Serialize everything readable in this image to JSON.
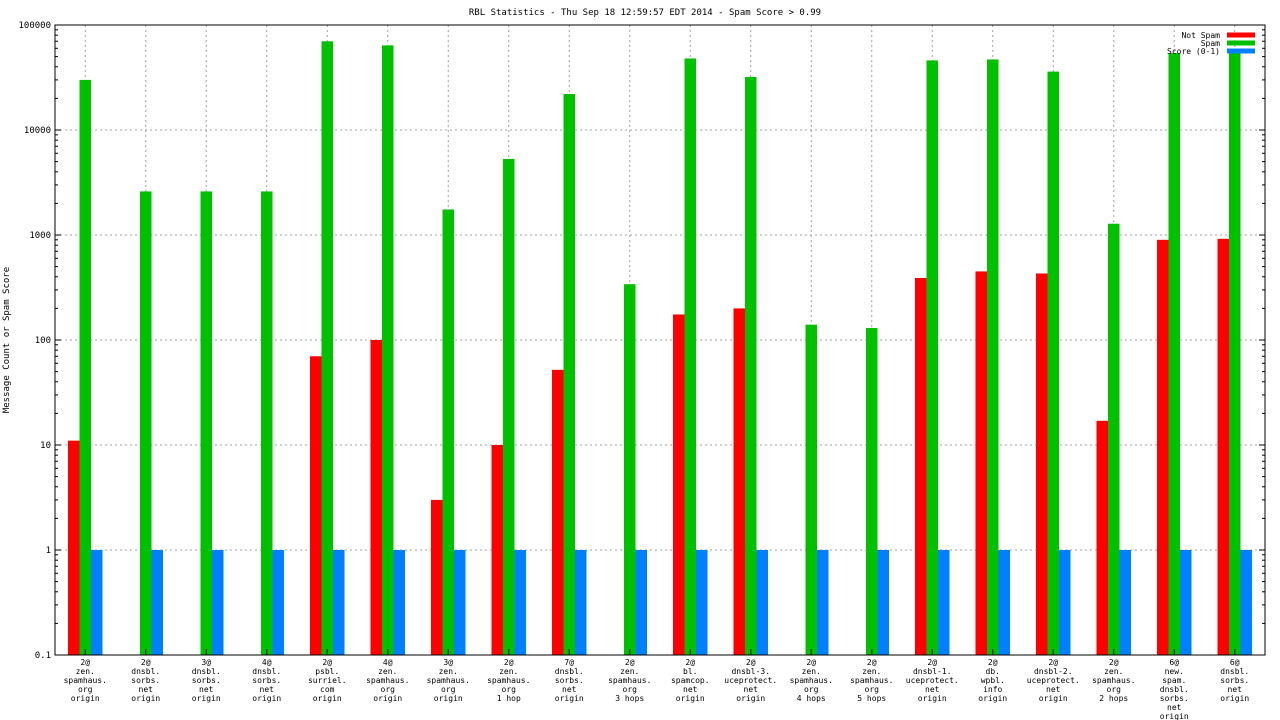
{
  "chart_data": {
    "type": "bar",
    "title": "RBL Statistics - Thu Sep 18 12:59:57 EDT 2014 - Spam Score > 0.99",
    "xlabel": "",
    "ylabel": "Message Count or Spam Score",
    "yscale": "log",
    "ylim": [
      0.1,
      100000
    ],
    "yticks": [
      "0.1",
      "1",
      "10",
      "100",
      "1000",
      "10000",
      "100000"
    ],
    "grid": true,
    "legend_position": "top-right",
    "categories": [
      [
        "2@",
        "zen.",
        "spamhaus.",
        "org",
        "origin"
      ],
      [
        "2@",
        "dnsbl.",
        "sorbs.",
        "net",
        "origin"
      ],
      [
        "3@",
        "dnsbl.",
        "sorbs.",
        "net",
        "origin"
      ],
      [
        "4@",
        "dnsbl.",
        "sorbs.",
        "net",
        "origin"
      ],
      [
        "2@",
        "psbl.",
        "surriel.",
        "com",
        "origin"
      ],
      [
        "4@",
        "zen.",
        "spamhaus.",
        "org",
        "origin"
      ],
      [
        "3@",
        "zen.",
        "spamhaus.",
        "org",
        "origin"
      ],
      [
        "2@",
        "zen.",
        "spamhaus.",
        "org",
        "1 hop"
      ],
      [
        "7@",
        "dnsbl.",
        "sorbs.",
        "net",
        "origin"
      ],
      [
        "2@",
        "zen.",
        "spamhaus.",
        "org",
        "3 hops"
      ],
      [
        "2@",
        "bl.",
        "spamcop.",
        "net",
        "origin"
      ],
      [
        "2@",
        "dnsbl-3.",
        "uceprotect.",
        "net",
        "origin"
      ],
      [
        "2@",
        "zen.",
        "spamhaus.",
        "org",
        "4 hops"
      ],
      [
        "2@",
        "zen.",
        "spamhaus.",
        "org",
        "5 hops"
      ],
      [
        "2@",
        "dnsbl-1.",
        "uceprotect.",
        "net",
        "origin"
      ],
      [
        "2@",
        "db.",
        "wpbl.",
        "info",
        "origin"
      ],
      [
        "2@",
        "dnsbl-2.",
        "uceprotect.",
        "net",
        "origin"
      ],
      [
        "2@",
        "zen.",
        "spamhaus.",
        "org",
        "2 hops"
      ],
      [
        "6@",
        "new.",
        "spam.",
        "dnsbl.",
        "sorbs.",
        "net",
        "origin"
      ],
      [
        "6@",
        "dnsbl.",
        "sorbs.",
        "net",
        "origin"
      ]
    ],
    "series": [
      {
        "name": "Not Spam",
        "color": "#ff0000",
        "values": [
          11,
          null,
          null,
          null,
          70,
          100,
          3,
          10,
          52,
          null,
          175,
          200,
          null,
          null,
          390,
          450,
          430,
          17,
          900,
          920
        ]
      },
      {
        "name": "Spam",
        "color": "#00c000",
        "values": [
          30000,
          2600,
          2600,
          2600,
          70000,
          64000,
          1750,
          5300,
          22000,
          340,
          48000,
          32000,
          140,
          130,
          46000,
          47000,
          36000,
          1280,
          54000,
          54000
        ]
      },
      {
        "name": "Score (0-1)",
        "color": "#0080ff",
        "values": [
          1,
          1,
          1,
          1,
          1,
          1,
          1,
          1,
          1,
          1,
          1,
          1,
          1,
          1,
          1,
          1,
          1,
          1,
          1,
          1
        ]
      }
    ]
  }
}
